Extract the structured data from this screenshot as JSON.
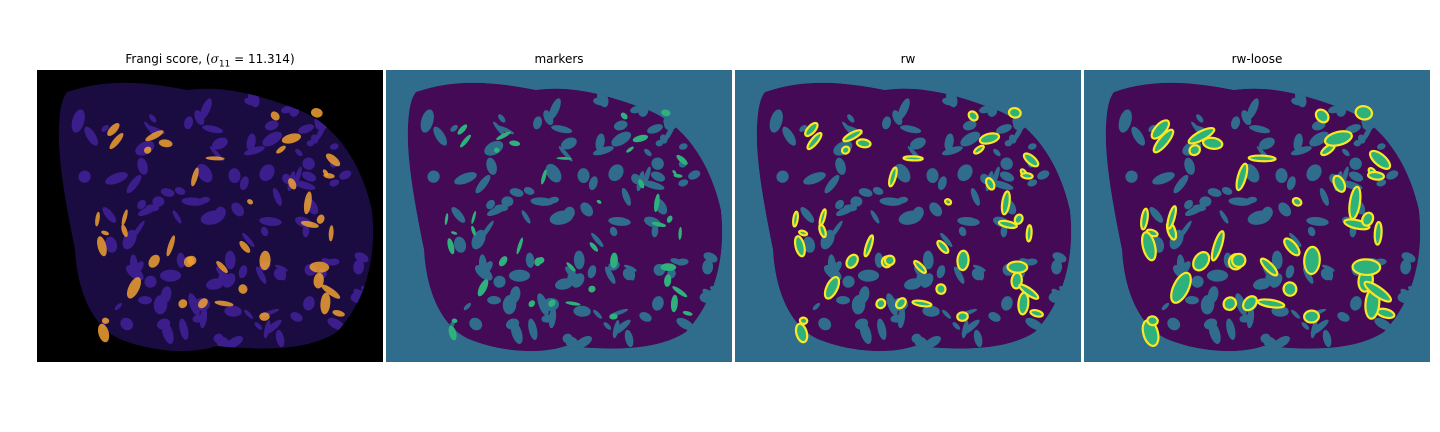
{
  "panels": [
    {
      "id": "frangi",
      "title_prefix": "Frangi score, (",
      "title_symbol": "σ",
      "title_subscript": "11",
      "title_suffix": " = 11.314)",
      "colormap": "magma",
      "background": "#000000",
      "blob_color": "#3b1d8c",
      "highlight_color": "#f0a030"
    },
    {
      "id": "markers",
      "title": "markers",
      "colormap": "viridis",
      "background": "#306d8d",
      "blob_color": "#440a56",
      "marker_color": "#2eb27b"
    },
    {
      "id": "rw",
      "title": "rw",
      "colormap": "viridis",
      "background": "#306d8d",
      "blob_color": "#440a56",
      "fill_color": "#2eb27b",
      "outline_color": "#fbe722"
    },
    {
      "id": "rw-loose",
      "title": "rw-loose",
      "colormap": "viridis",
      "background": "#306d8d",
      "blob_color": "#440a56",
      "fill_color": "#2eb27b",
      "outline_color": "#fbe722"
    }
  ]
}
